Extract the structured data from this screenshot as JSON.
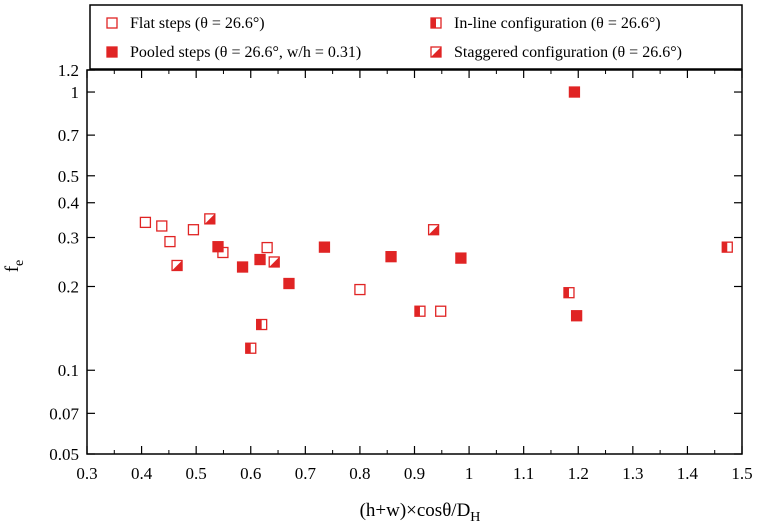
{
  "chart_data": {
    "type": "scatter",
    "title": "",
    "xlabel": "(h+w)×cosθ/D",
    "xlabel_sub": "H",
    "ylabel": "f",
    "ylabel_sub": "e",
    "xlim": [
      0.3,
      1.5
    ],
    "ylim": [
      0.05,
      1.2
    ],
    "yscale": "log",
    "grid": false,
    "legend_position": "top",
    "x_ticks": [
      "0.3",
      "0.4",
      "0.5",
      "0.6",
      "0.7",
      "0.8",
      "0.9",
      "1",
      "1.1",
      "1.2",
      "1.3",
      "1.4",
      "1.5"
    ],
    "y_ticks": [
      {
        "value": 0.05,
        "label": "0.05"
      },
      {
        "value": 0.07,
        "label": "0.07"
      },
      {
        "value": 0.1,
        "label": "0.1"
      },
      {
        "value": 0.2,
        "label": "0.2"
      },
      {
        "value": 0.3,
        "label": "0.3"
      },
      {
        "value": 0.4,
        "label": "0.4"
      },
      {
        "value": 0.5,
        "label": "0.5"
      },
      {
        "value": 0.7,
        "label": "0.7"
      },
      {
        "value": 1,
        "label": "1"
      },
      {
        "value": 1.2,
        "label": "1.2"
      }
    ],
    "color": "#e02424",
    "series": [
      {
        "name": "Flat steps (θ = 26.6°)",
        "marker": "square-open",
        "points": [
          [
            0.407,
            0.34
          ],
          [
            0.437,
            0.33
          ],
          [
            0.452,
            0.29
          ],
          [
            0.495,
            0.32
          ],
          [
            0.549,
            0.265
          ],
          [
            0.63,
            0.276
          ],
          [
            0.8,
            0.195
          ],
          [
            0.948,
            0.163
          ]
        ]
      },
      {
        "name": "Pooled steps (θ = 26.6°, w/h = 0.31)",
        "marker": "square-filled",
        "points": [
          [
            0.54,
            0.278
          ],
          [
            0.585,
            0.235
          ],
          [
            0.617,
            0.25
          ],
          [
            0.67,
            0.205
          ],
          [
            0.735,
            0.277
          ],
          [
            0.857,
            0.256
          ],
          [
            0.985,
            0.253
          ],
          [
            1.193,
            1.0
          ],
          [
            1.197,
            0.157
          ]
        ]
      },
      {
        "name": "In-line configuration (θ = 26.6°)",
        "marker": "square-half-left",
        "points": [
          [
            0.6,
            0.12
          ],
          [
            0.62,
            0.146
          ],
          [
            0.91,
            0.163
          ],
          [
            1.183,
            0.19
          ],
          [
            1.473,
            0.277
          ]
        ]
      },
      {
        "name": "Staggered configuration (θ = 26.6°)",
        "marker": "square-diagonal",
        "points": [
          [
            0.465,
            0.238
          ],
          [
            0.525,
            0.35
          ],
          [
            0.643,
            0.245
          ],
          [
            0.935,
            0.32
          ]
        ]
      }
    ]
  }
}
